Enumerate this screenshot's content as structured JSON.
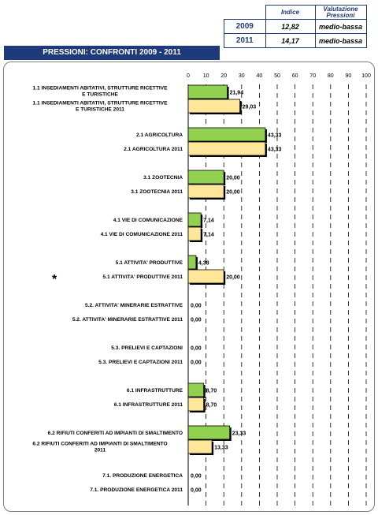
{
  "summary": {
    "header_index": "Indice",
    "header_eval": "Valutazione Pressioni",
    "rows": [
      {
        "year": "2009",
        "index": "12,82",
        "eval": "medio-bassa"
      },
      {
        "year": "2011",
        "index": "14,17",
        "eval": "medio-bassa"
      }
    ]
  },
  "title": "PRESSIONI: CONFRONTI 2009 - 2011",
  "note_marker": "*",
  "chart_data": {
    "type": "bar",
    "orientation": "horizontal",
    "xlim": [
      0,
      100
    ],
    "ticks": [
      "0",
      "10",
      "20",
      "30",
      "40",
      "50",
      "60",
      "70",
      "80",
      "90",
      "100"
    ],
    "grid": "vertical dashed",
    "colors": {
      "2009": "#92d050",
      "2011": "#ffe699"
    },
    "categories": [
      "1.1 INSEDIAMENTI ABITATIVI, STRUTTURE RICETTIVE E TURISTICHE",
      "1.1 INSEDIAMENTI ABITATIVI, STRUTTURE RICETTIVE E TURISTICHE 2011",
      "2.1 AGRICOLTURA",
      "2.1 AGRICOLTURA 2011",
      "3.1 ZOOTECNIA",
      "3.1 ZOOTECNIA 2011",
      "4.1 VIE DI COMUNICAZIONE",
      "4.1 VIE DI COMUNICAZIONE 2011",
      "5.1 ATTIVITA' PRODUTTIVE",
      "5.1 ATTIVITA' PRODUTTIVE 2011",
      "5.2. ATTIVITA' MINERARIE ESTRATTIVE",
      "5.2. ATTIVITA' MINERARIE ESTRATTIVE 2011",
      "5.3. PRELIEVI E CAPTAZIONI",
      "5.3. PRELIEVI E CAPTAZIONI 2011",
      "6.1 INFRASTRUTTURE",
      "6.1 INFRASTRUTTURE 2011",
      "6.2 RIFIUTI CONFERITI AD IMPIANTI DI SMALTIMENTO",
      "6.2 RIFIUTI CONFERITI AD IMPIANTI DI SMALTIMENTO 2011",
      "7.1. PRODUZIONE ENERGETICA",
      "7.1. PRODUZIONE ENERGETICA 2011"
    ],
    "values": [
      21.94,
      29.03,
      43.33,
      43.33,
      20.0,
      20.0,
      7.14,
      7.14,
      4.38,
      20.0,
      0.0,
      0.0,
      0.0,
      0.0,
      8.7,
      8.7,
      23.33,
      13.33,
      0.0,
      0.0
    ],
    "value_labels": [
      "21,94",
      "29,03",
      "43,33",
      "43,33",
      "20,00",
      "20,00",
      "7,14",
      "7,14",
      "4,38",
      "20,00",
      "0,00",
      "0,00",
      "0,00",
      "0,00",
      "8,70",
      "8,70",
      "23,33",
      "13,33",
      "0,00",
      "0,00"
    ],
    "series_year": [
      "2009",
      "2011",
      "2009",
      "2011",
      "2009",
      "2011",
      "2009",
      "2011",
      "2009",
      "2011",
      "2009",
      "2011",
      "2009",
      "2011",
      "2009",
      "2011",
      "2009",
      "2011",
      "2009",
      "2011"
    ]
  }
}
